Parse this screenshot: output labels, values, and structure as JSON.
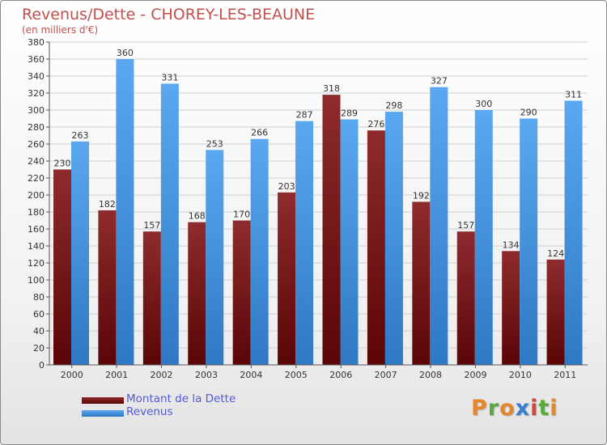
{
  "header": {
    "title": "Revenus/Dette - CHOREY-LES-BEAUNE",
    "subtitle": "(en milliers d'€)"
  },
  "legend": {
    "debt_label": "Montant de la Dette",
    "revenue_label": "Revenus"
  },
  "logo": {
    "text": "Proxiti"
  },
  "colors": {
    "debt": "#7b1518",
    "revenue": "#4a90d9",
    "title": "#c0504d",
    "legend_text": "#4f5bd5",
    "grid": "#cfcfcf",
    "logo_letters": [
      "#e8862a",
      "#5aaa3b",
      "#e8862a",
      "#3a7fd0",
      "#d9443a",
      "#5aaa3b",
      "#e8862a"
    ]
  },
  "chart_data": {
    "type": "bar",
    "categories": [
      "2000",
      "2001",
      "2002",
      "2003",
      "2004",
      "2005",
      "2006",
      "2007",
      "2008",
      "2009",
      "2010",
      "2011"
    ],
    "series": [
      {
        "name": "Montant de la Dette",
        "values": [
          230,
          182,
          157,
          168,
          170,
          203,
          318,
          276,
          192,
          157,
          134,
          124
        ]
      },
      {
        "name": "Revenus",
        "values": [
          263,
          360,
          331,
          253,
          266,
          287,
          289,
          298,
          327,
          300,
          290,
          311
        ]
      }
    ],
    "ylim": [
      0,
      380
    ],
    "ytick_step": 20,
    "grid": true,
    "legend_position": "bottom-left"
  }
}
